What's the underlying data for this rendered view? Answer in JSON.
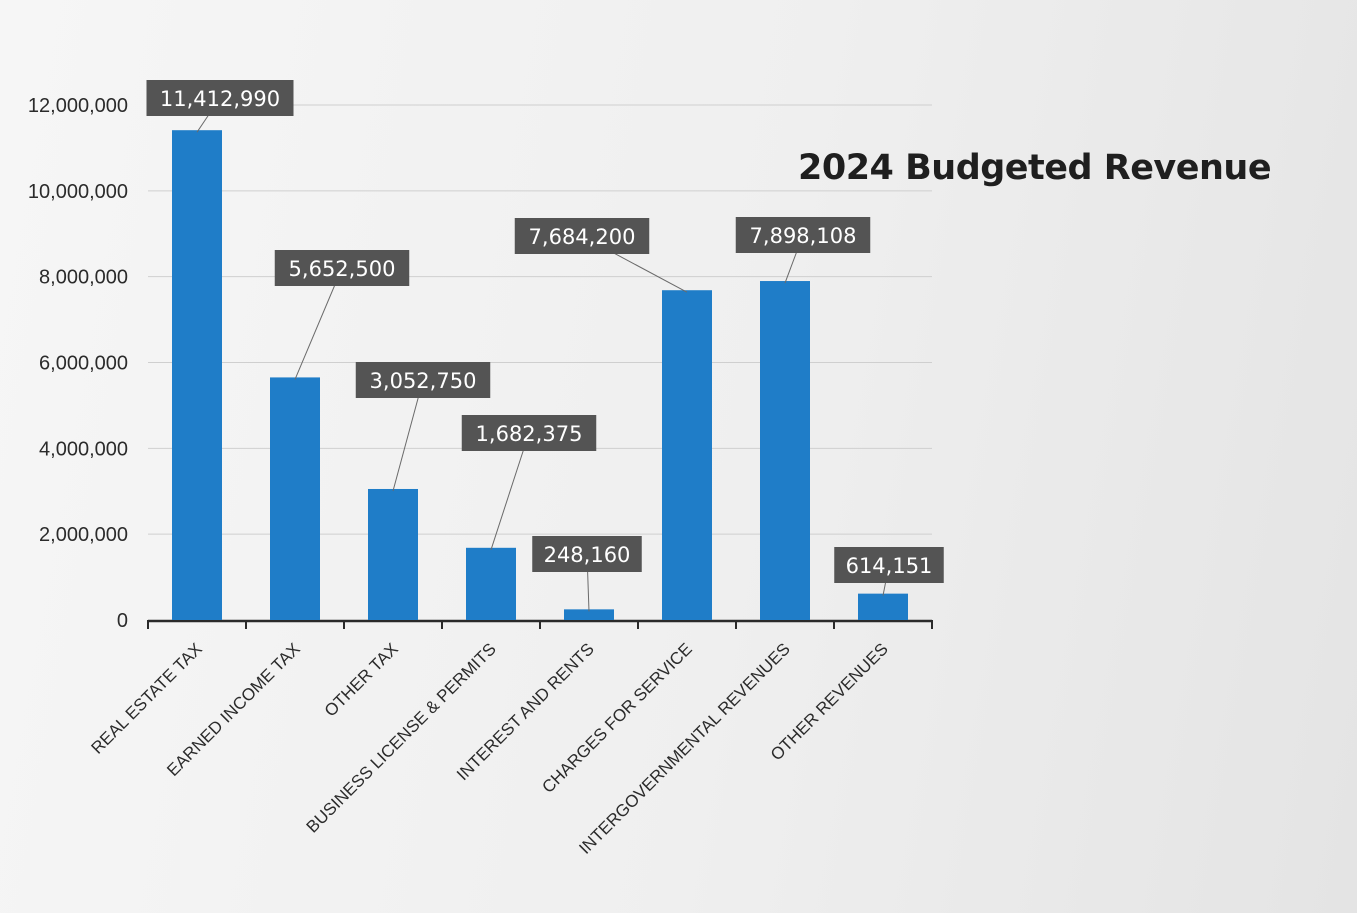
{
  "chart_data": {
    "type": "bar",
    "title": "2024 Budgeted Revenue",
    "xlabel": "",
    "ylabel": "",
    "categories": [
      "REAL ESTATE TAX",
      "EARNED INCOME TAX",
      "OTHER TAX",
      "BUSINESS LICENSE & PERMITS",
      "INTEREST AND RENTS",
      "CHARGES FOR SERVICE",
      "INTERGOVERNMENTAL REVENUES",
      "OTHER REVENUES"
    ],
    "values": [
      11412990,
      5652500,
      3052750,
      1682375,
      248160,
      7684200,
      7898108,
      614151
    ],
    "data_labels": [
      "11,412,990",
      "5,652,500",
      "3,052,750",
      "1,682,375",
      "248,160",
      "7,684,200",
      "7,898,108",
      "614,151"
    ],
    "yticks": [
      "0",
      "2,000,000",
      "4,000,000",
      "6,000,000",
      "8,000,000",
      "10,000,000",
      "12,000,000"
    ],
    "ylim": [
      0,
      12000000
    ],
    "grid": true,
    "legend": "none",
    "colors": {
      "bar": "#1f7dc8",
      "label_box": "#545454",
      "label_text": "#ffffff",
      "gridline": "#cfcfcf"
    }
  }
}
